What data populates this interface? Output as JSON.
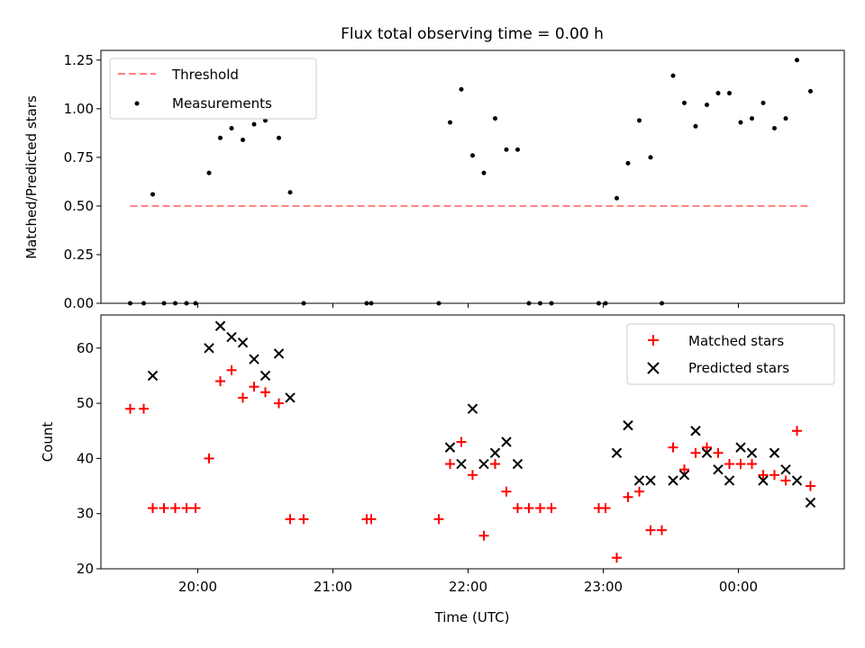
{
  "figure": {
    "title": "Flux total observing time = 0.00 h",
    "xlabel": "Time (UTC)",
    "x_ticks": [
      "20:00",
      "21:00",
      "22:00",
      "23:00",
      "00:00"
    ]
  },
  "chart_data": [
    {
      "type": "scatter",
      "title": "Flux total observing time = 0.00 h",
      "xlabel": "",
      "ylabel": "Matched/Predicted stars",
      "xlim": [
        "19:17",
        "00:47"
      ],
      "ylim": [
        0,
        1.3
      ],
      "y_ticks": [
        "0.00",
        "0.25",
        "0.50",
        "0.75",
        "1.00",
        "1.25"
      ],
      "legend_position": "upper left",
      "threshold": {
        "name": "Threshold",
        "value": 0.5,
        "x_start": "19:30",
        "x_end": "00:32",
        "color": "#ff7f7f",
        "style": "dashed"
      },
      "series": [
        {
          "name": "Measurements",
          "color": "#000000",
          "points": [
            [
              "19:30",
              0.0
            ],
            [
              "19:36",
              0.0
            ],
            [
              "19:40",
              0.56
            ],
            [
              "19:45",
              0.0
            ],
            [
              "19:50",
              0.0
            ],
            [
              "19:55",
              0.0
            ],
            [
              "19:59",
              0.0
            ],
            [
              "20:05",
              0.67
            ],
            [
              "20:10",
              0.85
            ],
            [
              "20:15",
              0.9
            ],
            [
              "20:20",
              0.84
            ],
            [
              "20:25",
              0.92
            ],
            [
              "20:30",
              0.94
            ],
            [
              "20:36",
              0.85
            ],
            [
              "20:41",
              0.57
            ],
            [
              "20:47",
              0.0
            ],
            [
              "21:15",
              0.0
            ],
            [
              "21:17",
              0.0
            ],
            [
              "21:47",
              0.0
            ],
            [
              "21:52",
              0.93
            ],
            [
              "21:57",
              1.1
            ],
            [
              "22:02",
              0.76
            ],
            [
              "22:07",
              0.67
            ],
            [
              "22:12",
              0.95
            ],
            [
              "22:17",
              0.79
            ],
            [
              "22:22",
              0.79
            ],
            [
              "22:27",
              0.0
            ],
            [
              "22:32",
              0.0
            ],
            [
              "22:37",
              0.0
            ],
            [
              "22:58",
              0.0
            ],
            [
              "23:01",
              0.0
            ],
            [
              "23:06",
              0.54
            ],
            [
              "23:11",
              0.72
            ],
            [
              "23:16",
              0.94
            ],
            [
              "23:21",
              0.75
            ],
            [
              "23:26",
              0.0
            ],
            [
              "23:31",
              1.17
            ],
            [
              "23:36",
              1.03
            ],
            [
              "23:41",
              0.91
            ],
            [
              "23:46",
              1.02
            ],
            [
              "23:51",
              1.08
            ],
            [
              "23:56",
              1.08
            ],
            [
              "00:01",
              0.93
            ],
            [
              "00:06",
              0.95
            ],
            [
              "00:11",
              1.03
            ],
            [
              "00:16",
              0.9
            ],
            [
              "00:21",
              0.95
            ],
            [
              "00:26",
              1.25
            ],
            [
              "00:32",
              1.09
            ]
          ]
        }
      ]
    },
    {
      "type": "scatter",
      "title": "",
      "xlabel": "Time (UTC)",
      "ylabel": "Count",
      "xlim": [
        "19:17",
        "00:47"
      ],
      "ylim": [
        20,
        66
      ],
      "y_ticks": [
        "20",
        "30",
        "40",
        "50",
        "60"
      ],
      "legend_position": "upper right",
      "series": [
        {
          "name": "Matched stars",
          "marker": "+",
          "color": "#ff0000",
          "points": [
            [
              "19:30",
              49
            ],
            [
              "19:36",
              49
            ],
            [
              "19:40",
              31
            ],
            [
              "19:45",
              31
            ],
            [
              "19:50",
              31
            ],
            [
              "19:55",
              31
            ],
            [
              "19:59",
              31
            ],
            [
              "20:05",
              40
            ],
            [
              "20:10",
              54
            ],
            [
              "20:15",
              56
            ],
            [
              "20:20",
              51
            ],
            [
              "20:25",
              53
            ],
            [
              "20:30",
              52
            ],
            [
              "20:36",
              50
            ],
            [
              "20:41",
              29
            ],
            [
              "20:47",
              29
            ],
            [
              "21:15",
              29
            ],
            [
              "21:17",
              29
            ],
            [
              "21:47",
              29
            ],
            [
              "21:52",
              39
            ],
            [
              "21:57",
              43
            ],
            [
              "22:02",
              37
            ],
            [
              "22:07",
              26
            ],
            [
              "22:12",
              39
            ],
            [
              "22:17",
              34
            ],
            [
              "22:22",
              31
            ],
            [
              "22:27",
              31
            ],
            [
              "22:32",
              31
            ],
            [
              "22:37",
              31
            ],
            [
              "22:58",
              31
            ],
            [
              "23:01",
              31
            ],
            [
              "23:06",
              22
            ],
            [
              "23:11",
              33
            ],
            [
              "23:16",
              34
            ],
            [
              "23:21",
              27
            ],
            [
              "23:26",
              27
            ],
            [
              "23:31",
              42
            ],
            [
              "23:36",
              38
            ],
            [
              "23:41",
              41
            ],
            [
              "23:46",
              42
            ],
            [
              "23:51",
              41
            ],
            [
              "23:56",
              39
            ],
            [
              "00:01",
              39
            ],
            [
              "00:06",
              39
            ],
            [
              "00:11",
              37
            ],
            [
              "00:16",
              37
            ],
            [
              "00:21",
              36
            ],
            [
              "00:26",
              45
            ],
            [
              "00:32",
              35
            ]
          ]
        },
        {
          "name": "Predicted stars",
          "marker": "x",
          "color": "#000000",
          "points": [
            [
              "19:40",
              55
            ],
            [
              "20:05",
              60
            ],
            [
              "20:10",
              64
            ],
            [
              "20:15",
              62
            ],
            [
              "20:20",
              61
            ],
            [
              "20:25",
              58
            ],
            [
              "20:30",
              55
            ],
            [
              "20:36",
              59
            ],
            [
              "20:41",
              51
            ],
            [
              "21:52",
              42
            ],
            [
              "21:57",
              39
            ],
            [
              "22:02",
              49
            ],
            [
              "22:07",
              39
            ],
            [
              "22:12",
              41
            ],
            [
              "22:17",
              43
            ],
            [
              "22:22",
              39
            ],
            [
              "23:06",
              41
            ],
            [
              "23:11",
              46
            ],
            [
              "23:16",
              36
            ],
            [
              "23:21",
              36
            ],
            [
              "23:31",
              36
            ],
            [
              "23:36",
              37
            ],
            [
              "23:41",
              45
            ],
            [
              "23:46",
              41
            ],
            [
              "23:51",
              38
            ],
            [
              "23:56",
              36
            ],
            [
              "00:01",
              42
            ],
            [
              "00:06",
              41
            ],
            [
              "00:11",
              36
            ],
            [
              "00:16",
              41
            ],
            [
              "00:21",
              38
            ],
            [
              "00:26",
              36
            ],
            [
              "00:32",
              32
            ]
          ]
        }
      ]
    }
  ]
}
